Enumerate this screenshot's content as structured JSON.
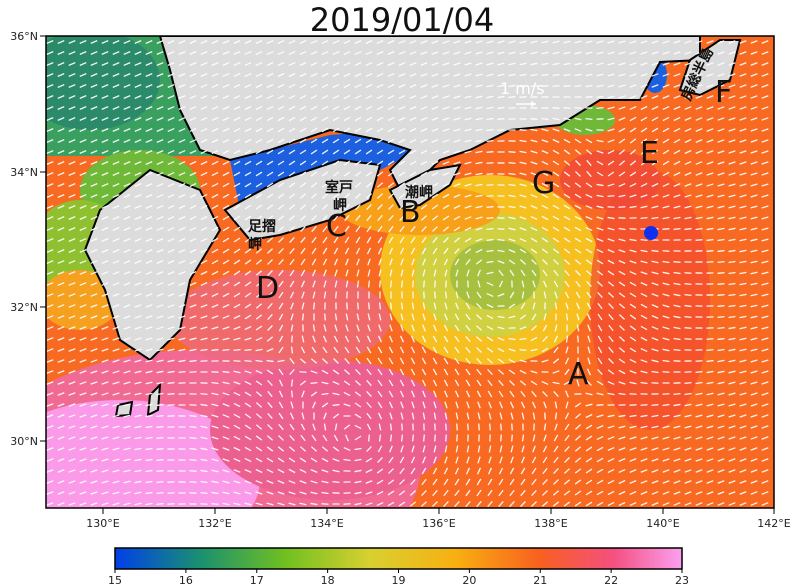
{
  "title": "2019/01/04",
  "latitude_ticks": [
    "36°N",
    "34°N",
    "32°N",
    "30°N"
  ],
  "longitude_ticks": [
    "130°E",
    "132°E",
    "134°E",
    "136°E",
    "138°E",
    "140°E",
    "142°E"
  ],
  "scale_label": "1 m/s",
  "region_labels": [
    "A",
    "B",
    "C",
    "D",
    "E",
    "F",
    "G"
  ],
  "place_names": {
    "muroto": "室戸岬",
    "ashizuri": "足摺岬",
    "shio": "潮岬",
    "boso": "房総半島"
  },
  "colorbar": {
    "ticks": [
      "15",
      "16",
      "17",
      "18",
      "19",
      "20",
      "21",
      "22",
      "23"
    ],
    "colors": [
      "#0050e0",
      "#1aa060",
      "#80c020",
      "#e8d020",
      "#f8b010",
      "#f87820",
      "#f04040",
      "#f890e0"
    ]
  },
  "marker_color": "#1030f0"
}
